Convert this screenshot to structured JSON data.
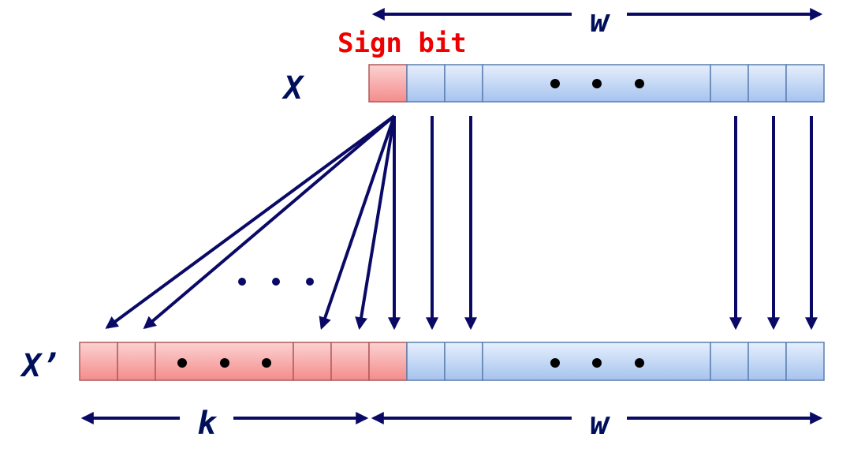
{
  "labels": {
    "sign_bit": "Sign bit",
    "x": "X",
    "x_prime": "X’",
    "w_top": "w",
    "w_bottom": "w",
    "k": "k"
  },
  "colors": {
    "sign_text": "#ee0000",
    "arrow": "#0a0a66",
    "red_cell_top": "#f8c4c4",
    "red_cell_bottom": "#f58e8e",
    "blue_cell_top": "#dbe8fb",
    "blue_cell_bottom": "#a9c6ef"
  },
  "diagram": {
    "description_bits": "sign extension",
    "top_word_cells": 8,
    "bottom_red_cells": 6,
    "bottom_blue_cells": 8
  }
}
